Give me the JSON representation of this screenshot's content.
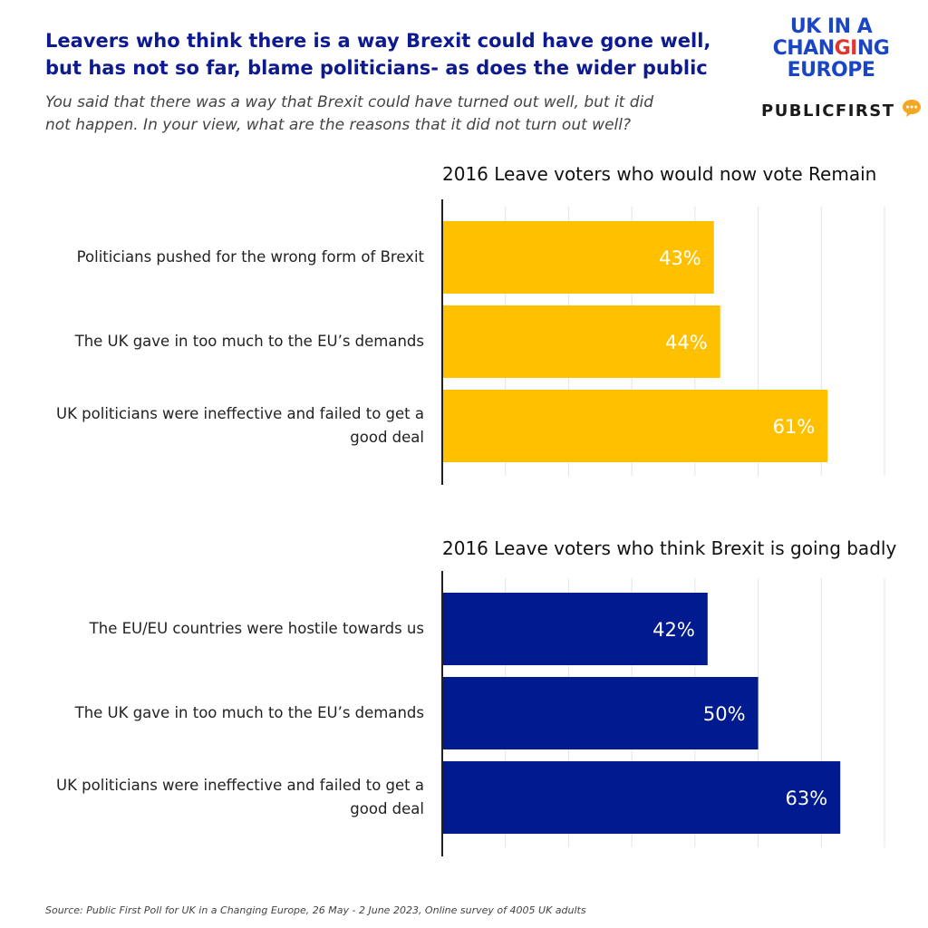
{
  "header": {
    "title_lines": [
      "Leavers who think there is a way Brexit could have gone well,",
      "but has not so far, blame politicians- as does the wider public"
    ],
    "subtitle_lines": [
      "You said that there was a way that Brexit could have turned out well, but it did",
      "not happen. In your view, what are the reasons that it did not turn out well?"
    ]
  },
  "logos": {
    "ukice_lines": [
      "UK IN A",
      "CHANGING",
      "EUROPE"
    ],
    "publicfirst": "PUBLICFIRST"
  },
  "colors": {
    "panel1_bar": "#ffc000",
    "panel2_bar": "#001a8f",
    "title": "#0e1a8f",
    "logo_blue": "#1a45c6",
    "logo_red": "#e3352e",
    "bubble": "#f5a623"
  },
  "chart_data": [
    {
      "type": "bar",
      "orientation": "horizontal",
      "title": "2016 Leave voters who would now vote Remain",
      "categories": [
        "Politicians pushed for the wrong form of Brexit",
        "The UK gave in too much to the EU’s demands",
        "UK politicians were ineffective and failed to get a good deal"
      ],
      "values": [
        43,
        44,
        61
      ],
      "data_labels": [
        "43%",
        "44%",
        "61%"
      ],
      "xlim": [
        0,
        70
      ],
      "grid": true,
      "color": "#ffc000"
    },
    {
      "type": "bar",
      "orientation": "horizontal",
      "title": "2016 Leave voters who think Brexit is going badly",
      "categories": [
        "The EU/EU countries were hostile towards us",
        "The UK gave in too much to the EU’s demands",
        "UK politicians were ineffective and failed to get a good deal"
      ],
      "values": [
        42,
        50,
        63
      ],
      "data_labels": [
        "42%",
        "50%",
        "63%"
      ],
      "xlim": [
        0,
        70
      ],
      "grid": true,
      "color": "#001a8f"
    }
  ],
  "footnote": "Source: Public First Poll for UK in a Changing Europe, 26 May - 2 June 2023, Online survey of 4005 UK adults"
}
